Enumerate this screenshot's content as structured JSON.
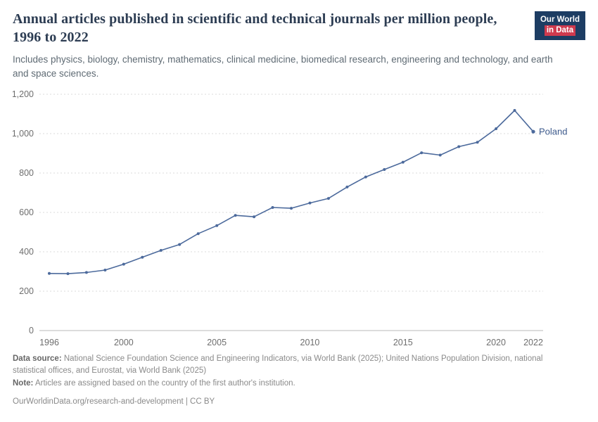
{
  "header": {
    "title": "Annual articles published in scientific and technical journals per million people, 1996 to 2022",
    "subtitle": "Includes physics, biology, chemistry, mathematics, clinical medicine, biomedical research, engineering and technology, and earth and space sciences.",
    "logo": {
      "line1": "Our World",
      "line2": "in Data"
    }
  },
  "chart_data": {
    "type": "line",
    "title": "Annual articles published in scientific and technical journals per million people, 1996 to 2022",
    "xlabel": "",
    "ylabel": "",
    "xlim": [
      1996,
      2022
    ],
    "ylim": [
      0,
      1200
    ],
    "grid": "horizontal-dashed",
    "legend_position": "end-of-line-label",
    "x_ticks": [
      1996,
      2000,
      2005,
      2010,
      2015,
      2020,
      2022
    ],
    "y_ticks": [
      0,
      200,
      400,
      600,
      800,
      1000,
      1200
    ],
    "y_tick_labels": [
      "0",
      "200",
      "400",
      "600",
      "800",
      "1,000",
      "1,200"
    ],
    "series": [
      {
        "name": "Poland",
        "color": "#4c6a9c",
        "label_color": "#3d5a8c",
        "x": [
          1996,
          1997,
          1998,
          1999,
          2000,
          2001,
          2002,
          2003,
          2004,
          2005,
          2006,
          2007,
          2008,
          2009,
          2010,
          2011,
          2012,
          2013,
          2014,
          2015,
          2016,
          2017,
          2018,
          2019,
          2020,
          2021,
          2022
        ],
        "values": [
          290,
          289,
          295,
          307,
          337,
          372,
          407,
          437,
          492,
          533,
          585,
          578,
          625,
          621,
          648,
          671,
          729,
          780,
          818,
          855,
          903,
          891,
          934,
          956,
          1025,
          1118,
          1010
        ]
      }
    ]
  },
  "footer": {
    "datasource_label": "Data source:",
    "datasource_text": " National Science Foundation Science and Engineering Indicators, via World Bank (2025); United Nations Population Division, national statistical offices, and Eurostat, via World Bank (2025)",
    "note_label": "Note:",
    "note_text": " Articles are assigned based on the country of the first author's institution.",
    "license": "OurWorldinData.org/research-and-development | CC BY"
  }
}
